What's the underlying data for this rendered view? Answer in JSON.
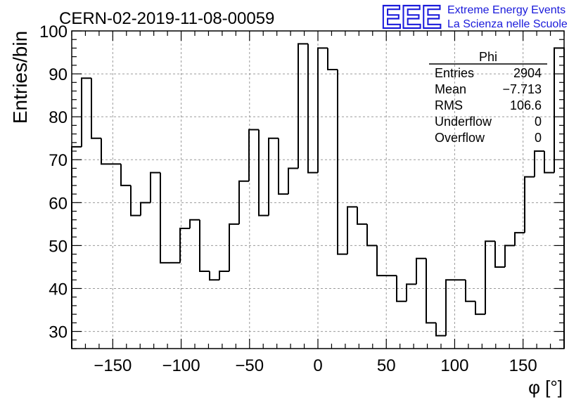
{
  "chart_data": {
    "type": "histogram",
    "title": "CERN-02-2019-11-08-00059",
    "xlabel": "φ [°]",
    "ylabel": "Entries/bin",
    "xlim": [
      -180,
      180
    ],
    "ylim": [
      26,
      100
    ],
    "bin_width": 7.2,
    "x_ticks": [
      -150,
      -100,
      -50,
      0,
      50,
      100,
      150
    ],
    "x_tick_labels": [
      "−150",
      "−100",
      "−50",
      "0",
      "50",
      "100",
      "150"
    ],
    "y_ticks": [
      30,
      40,
      50,
      60,
      70,
      80,
      90,
      100
    ],
    "y_tick_labels": [
      "30",
      "40",
      "50",
      "60",
      "70",
      "80",
      "90",
      "100"
    ],
    "grid": true,
    "bin_contents": [
      73,
      89,
      75,
      69,
      69,
      64,
      57,
      60,
      67,
      46,
      46,
      54,
      56,
      44,
      42,
      44,
      55,
      65,
      77,
      57,
      75,
      62,
      68,
      97,
      67,
      96,
      91,
      48,
      59,
      55,
      50,
      43,
      43,
      37,
      41,
      47,
      32,
      29,
      42,
      42,
      37,
      34,
      51,
      45,
      50,
      53,
      66,
      72,
      67,
      96
    ],
    "stats": {
      "name": "Phi",
      "rows": [
        {
          "label": "Entries",
          "value": "2904"
        },
        {
          "label": "Mean",
          "value": "−7.713"
        },
        {
          "label": "RMS",
          "value": "106.6"
        },
        {
          "label": "Underflow",
          "value": "0"
        },
        {
          "label": "Overflow",
          "value": "0"
        }
      ]
    },
    "colors": {
      "line": "#000000",
      "grid": "#9a9a9a",
      "logo": "#1a1adb"
    }
  },
  "logo": {
    "mark": "EEE",
    "line1": "Extreme Energy Events",
    "line2": "La Scienza nelle Scuole"
  }
}
